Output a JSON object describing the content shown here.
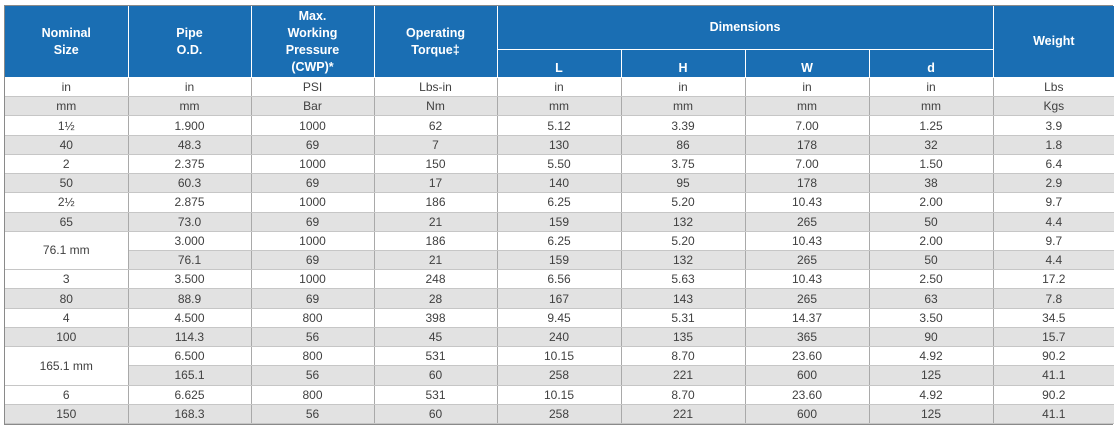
{
  "header": {
    "nominal_size": "Nominal\nSize",
    "pipe_od": "Pipe\nO.D.",
    "max_pressure": "Max.\nWorking\nPressure\n(CWP)*",
    "operating_torque": "Operating\nTorque‡",
    "dimensions": "Dimensions",
    "L": "L",
    "H": "H",
    "W": "W",
    "d": "d",
    "weight": "Weight"
  },
  "units_imperial": [
    "in",
    "in",
    "PSI",
    "Lbs-in",
    "in",
    "in",
    "in",
    "in",
    "Lbs"
  ],
  "units_metric": [
    "mm",
    "mm",
    "Bar",
    "Nm",
    "mm",
    "mm",
    "mm",
    "mm",
    "Kgs"
  ],
  "rows": [
    {
      "size": "1½",
      "vals": [
        "1.900",
        "1000",
        "62",
        "5.12",
        "3.39",
        "7.00",
        "1.25",
        "3.9"
      ]
    },
    {
      "size": "40",
      "vals": [
        "48.3",
        "69",
        "7",
        "130",
        "86",
        "178",
        "32",
        "1.8"
      ]
    },
    {
      "size": "2",
      "vals": [
        "2.375",
        "1000",
        "150",
        "5.50",
        "3.75",
        "7.00",
        "1.50",
        "6.4"
      ]
    },
    {
      "size": "50",
      "vals": [
        "60.3",
        "69",
        "17",
        "140",
        "95",
        "178",
        "38",
        "2.9"
      ]
    },
    {
      "size": "2½",
      "vals": [
        "2.875",
        "1000",
        "186",
        "6.25",
        "5.20",
        "10.43",
        "2.00",
        "9.7"
      ]
    },
    {
      "size": "65",
      "vals": [
        "73.0",
        "69",
        "21",
        "159",
        "132",
        "265",
        "50",
        "4.4"
      ]
    },
    {
      "size": "76.1 mm",
      "vals": [
        "3.000",
        "1000",
        "186",
        "6.25",
        "5.20",
        "10.43",
        "2.00",
        "9.7"
      ]
    },
    {
      "size": "",
      "vals": [
        "76.1",
        "69",
        "21",
        "159",
        "132",
        "265",
        "50",
        "4.4"
      ]
    },
    {
      "size": "3",
      "vals": [
        "3.500",
        "1000",
        "248",
        "6.56",
        "5.63",
        "10.43",
        "2.50",
        "17.2"
      ]
    },
    {
      "size": "80",
      "vals": [
        "88.9",
        "69",
        "28",
        "167",
        "143",
        "265",
        "63",
        "7.8"
      ]
    },
    {
      "size": "4",
      "vals": [
        "4.500",
        "800",
        "398",
        "9.45",
        "5.31",
        "14.37",
        "3.50",
        "34.5"
      ]
    },
    {
      "size": "100",
      "vals": [
        "114.3",
        "56",
        "45",
        "240",
        "135",
        "365",
        "90",
        "15.7"
      ]
    },
    {
      "size": "165.1 mm",
      "vals": [
        "6.500",
        "800",
        "531",
        "10.15",
        "8.70",
        "23.60",
        "4.92",
        "90.2"
      ]
    },
    {
      "size": "",
      "vals": [
        "165.1",
        "56",
        "60",
        "258",
        "221",
        "600",
        "125",
        "41.1"
      ]
    },
    {
      "size": "6",
      "vals": [
        "6.625",
        "800",
        "531",
        "10.15",
        "8.70",
        "23.60",
        "4.92",
        "90.2"
      ]
    },
    {
      "size": "150",
      "vals": [
        "168.3",
        "56",
        "60",
        "258",
        "221",
        "600",
        "125",
        "41.1"
      ]
    }
  ],
  "colors": {
    "header_bg": "#1a6eb3",
    "shade_row": "#e2e2e2"
  }
}
